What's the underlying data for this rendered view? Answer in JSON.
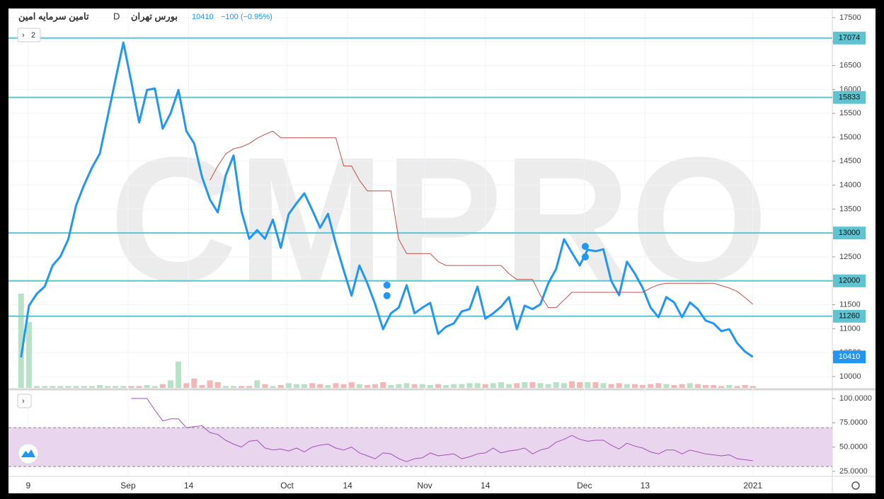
{
  "header": {
    "name": "تامین سرمایه امین",
    "interval": "D",
    "exchange": "بورس تهران",
    "price": "10410",
    "change": "−100 (−0.95%)",
    "panes": "2"
  },
  "watermark": "CMPRO",
  "chart_data": [
    {
      "type": "line",
      "xlim": [
        -1.6,
        103.1
      ],
      "ylim": [
        9763,
        17692
      ],
      "grid": true,
      "xticks": [
        {
          "value": 0.9,
          "label": "9"
        },
        {
          "value": 13.6,
          "label": "Sep"
        },
        {
          "value": 21.3,
          "label": "14"
        },
        {
          "value": 33.8,
          "label": "Oct"
        },
        {
          "value": 41.5,
          "label": "14"
        },
        {
          "value": 51.3,
          "label": "Nov"
        },
        {
          "value": 59,
          "label": "14"
        },
        {
          "value": 71.6,
          "label": "Dec"
        },
        {
          "value": 79.3,
          "label": "13"
        },
        {
          "value": 93,
          "label": "2021"
        }
      ],
      "yticks": [
        10000,
        10500,
        11000,
        11500,
        12000,
        12500,
        13000,
        13500,
        14000,
        14500,
        15000,
        15500,
        16000,
        16500,
        17000,
        17500
      ],
      "series": [
        {
          "color": "#2196f3",
          "values": [
            10400,
            11480,
            11730,
            11880,
            12320,
            12510,
            12870,
            13580,
            14000,
            14360,
            14660,
            15430,
            16210,
            16980,
            16170,
            15310,
            15990,
            16020,
            15180,
            15500,
            15990,
            15130,
            14870,
            14170,
            13700,
            13430,
            14200,
            14620,
            13460,
            12880,
            13060,
            12880,
            13280,
            12690,
            13390,
            13620,
            13830,
            13480,
            13110,
            13400,
            12770,
            12220,
            11690,
            12320,
            11950,
            11510,
            10990,
            11320,
            11440,
            11910,
            11320,
            11440,
            11540,
            10890,
            11040,
            11110,
            11360,
            11410,
            11880,
            11210,
            11320,
            11460,
            11660,
            10990,
            11480,
            11410,
            11510,
            11950,
            12250,
            12870,
            12590,
            12320,
            12650,
            12620,
            12660,
            12000,
            11700,
            12400,
            12150,
            11850,
            11440,
            11240,
            11660,
            11550,
            11240,
            11550,
            11410,
            11170,
            11110,
            10950,
            10990,
            10700,
            10520,
            10410
          ]
        },
        {
          "color": "#c0504d",
          "values": [
            null,
            null,
            null,
            null,
            null,
            null,
            null,
            null,
            null,
            null,
            null,
            null,
            null,
            null,
            null,
            null,
            null,
            null,
            null,
            null,
            null,
            null,
            null,
            null,
            14100,
            14400,
            14650,
            14760,
            14800,
            14870,
            14980,
            15060,
            15130,
            14990,
            14990,
            14990,
            14990,
            14990,
            14990,
            14990,
            14990,
            14400,
            14400,
            14100,
            13880,
            13880,
            13880,
            13880,
            12870,
            12570,
            12570,
            12570,
            12570,
            12400,
            12320,
            12320,
            12320,
            12320,
            12320,
            12320,
            12320,
            12320,
            12150,
            12030,
            12030,
            12030,
            11700,
            11440,
            11440,
            11600,
            11760,
            11760,
            11760,
            11760,
            11760,
            11760,
            11760,
            11760,
            11760,
            11760,
            11850,
            11920,
            11950,
            11950,
            11950,
            11950,
            11950,
            11950,
            11950,
            11900,
            11850,
            11780,
            11650,
            11510
          ]
        }
      ],
      "hlines": [
        {
          "value": 17074,
          "label": "17074"
        },
        {
          "value": 15833,
          "label": "15833"
        },
        {
          "value": 13000,
          "label": "13000"
        },
        {
          "value": 12000,
          "label": "12000"
        },
        {
          "value": 11260,
          "label": "11260"
        }
      ],
      "hline_color": "#5ec4d2",
      "last": {
        "value": 10410,
        "label": "10410"
      },
      "markers": [
        {
          "x": 46.5,
          "y": 11910
        },
        {
          "x": 46.5,
          "y": 11690
        },
        {
          "x": 71.7,
          "y": 12720
        },
        {
          "x": 71.7,
          "y": 12500
        }
      ],
      "volume": {
        "up_color": "#b7e2c8",
        "down_color": "#f4b6b6",
        "values": [
          100,
          70,
          2,
          2,
          2,
          2,
          2,
          2,
          2,
          2,
          3,
          2,
          2,
          2,
          2,
          2,
          3,
          2,
          4,
          8,
          28,
          5,
          10,
          3,
          8,
          6,
          2,
          2,
          2,
          2,
          8,
          4,
          2,
          3,
          5,
          4,
          4,
          5,
          4,
          3,
          5,
          4,
          6,
          4,
          3,
          4,
          6,
          3,
          4,
          5,
          4,
          4,
          3,
          4,
          3,
          4,
          4,
          5,
          5,
          4,
          5,
          6,
          4,
          5,
          6,
          6,
          5,
          4,
          6,
          5,
          7,
          6,
          6,
          6,
          5,
          4,
          5,
          4,
          4,
          3,
          4,
          5,
          4,
          3,
          4,
          5,
          4,
          3,
          3,
          2,
          3,
          2,
          3,
          2
        ]
      }
    },
    {
      "type": "line",
      "xlim": [
        -1.6,
        103.1
      ],
      "ylim": [
        20.6,
        107.3
      ],
      "band": [
        30,
        70
      ],
      "band_color": "#e9d6ee",
      "yticks": [
        {
          "value": 100,
          "label": "100.0000"
        },
        {
          "value": 75,
          "label": "75.0000"
        },
        {
          "value": 50,
          "label": "50.0000"
        },
        {
          "value": 25,
          "label": "25.0000"
        }
      ],
      "series": [
        {
          "color": "#a24fb4",
          "values": [
            null,
            null,
            null,
            null,
            null,
            null,
            null,
            null,
            null,
            null,
            null,
            null,
            null,
            null,
            100,
            100,
            100,
            88,
            77,
            79,
            79,
            70,
            71,
            72,
            65,
            63,
            57,
            53,
            50,
            56,
            57,
            49,
            47,
            48,
            46,
            49,
            45,
            50,
            52,
            53,
            49,
            47,
            50,
            44,
            41,
            38,
            44,
            43,
            38,
            35,
            38,
            39,
            44,
            41,
            42,
            43,
            38,
            40,
            43,
            44,
            49,
            44,
            46,
            47,
            49,
            43,
            47,
            49,
            55,
            58,
            62,
            58,
            56,
            57,
            57,
            52,
            48,
            54,
            51,
            49,
            45,
            43,
            47,
            47,
            43,
            47,
            45,
            43,
            42,
            41,
            42,
            38,
            37,
            36
          ]
        }
      ]
    }
  ]
}
